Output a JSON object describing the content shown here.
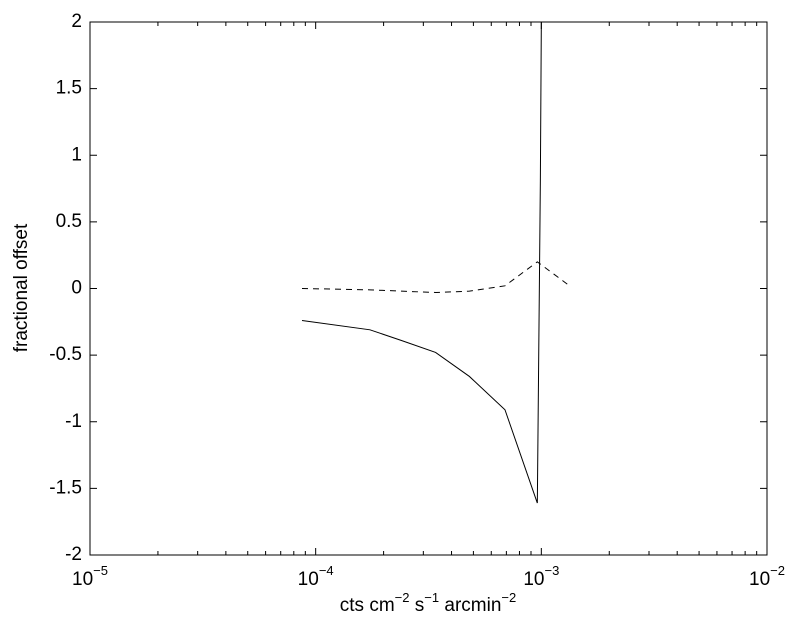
{
  "chart_data": {
    "type": "line",
    "xlabel": [
      "cts cm",
      "−2",
      " s",
      "−1",
      " arcmin",
      "−2"
    ],
    "ylabel": "fractional offset",
    "xscale": "log",
    "xlim": [
      1e-05,
      0.01
    ],
    "xticks": [
      {
        "value": 1e-05,
        "label": "10",
        "exponent": "−5"
      },
      {
        "value": 0.0001,
        "label": "10",
        "exponent": "−4"
      },
      {
        "value": 0.001,
        "label": "10",
        "exponent": "−3"
      },
      {
        "value": 0.01,
        "label": "10",
        "exponent": "−2"
      }
    ],
    "ylim": [
      -2,
      2
    ],
    "yticks": [
      -2,
      -1.5,
      -1,
      -0.5,
      0,
      0.5,
      1,
      1.5,
      2
    ],
    "grid": false,
    "series": [
      {
        "color": "#000000",
        "dashed": false,
        "x": [
          8.7e-05,
          0.000174,
          0.00024,
          0.00034,
          0.00048,
          0.00069,
          0.00096,
          0.00099,
          0.001
        ],
        "values": [
          -0.24,
          -0.31,
          -0.39,
          -0.48,
          -0.66,
          -0.91,
          -1.61,
          0.8,
          2
        ]
      },
      {
        "color": "#000000",
        "dashed": true,
        "x": [
          8.7e-05,
          0.000174,
          0.00024,
          0.00034,
          0.00048,
          0.00069,
          0.00096,
          0.00131
        ],
        "values": [
          0,
          -0.01,
          -0.02,
          -0.03,
          -0.02,
          0.02,
          0.2,
          0.03
        ]
      }
    ]
  }
}
